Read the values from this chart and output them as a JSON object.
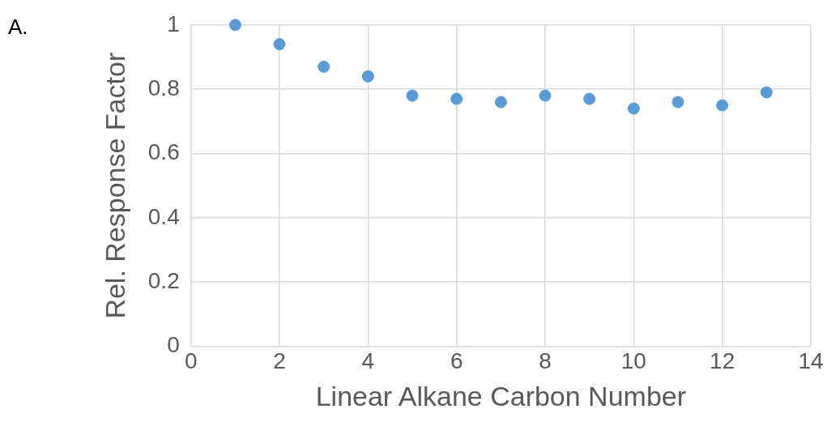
{
  "chart_data": {
    "type": "scatter",
    "xlabel": "Linear Alkane Carbon Number",
    "ylabel": "Rel. Response Factor",
    "annotations": [
      "A."
    ],
    "x": [
      1,
      2,
      3,
      4,
      5,
      6,
      7,
      8,
      9,
      10,
      11,
      12,
      13
    ],
    "series": [
      {
        "color": "#5b9bd5",
        "values": [
          1.0,
          0.94,
          0.87,
          0.84,
          0.78,
          0.77,
          0.76,
          0.78,
          0.77,
          0.74,
          0.76,
          0.75,
          0.79
        ]
      }
    ],
    "xlim": [
      0,
      14
    ],
    "xticks": [
      0,
      2,
      4,
      6,
      8,
      10,
      12,
      14
    ],
    "ylim": [
      0,
      1
    ],
    "yticks": [
      0,
      0.2,
      0.4,
      0.6,
      0.8,
      1
    ],
    "grid": true,
    "legend": false,
    "marker": "circle"
  }
}
